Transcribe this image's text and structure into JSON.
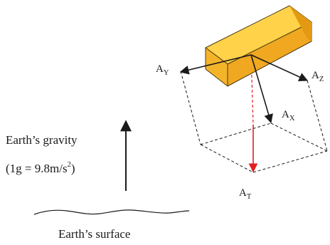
{
  "diagram": {
    "accel_labels": {
      "y": {
        "main": "A",
        "sub": "Y"
      },
      "z": {
        "main": "A",
        "sub": "Z"
      },
      "x": {
        "main": "A",
        "sub": "X"
      },
      "t": {
        "main": "A",
        "sub": "T"
      }
    },
    "gravity": {
      "label_line1": "Earth’s gravity",
      "label_line2_prefix": "(1g = 9.8m/s",
      "label_line2_sup": "2",
      "label_line2_suffix": ")"
    },
    "surface": {
      "label": "Earth’s surface"
    },
    "colors": {
      "box_front": "#F4B42A",
      "box_top": "#FFD24A",
      "box_side": "#E39A12",
      "box_stroke": "#4a3a10",
      "resultant": "#E02020",
      "ink": "#1a1a1a"
    },
    "icons": {
      "sensor": "accelerometer-box",
      "gravity": "up-arrow"
    }
  }
}
